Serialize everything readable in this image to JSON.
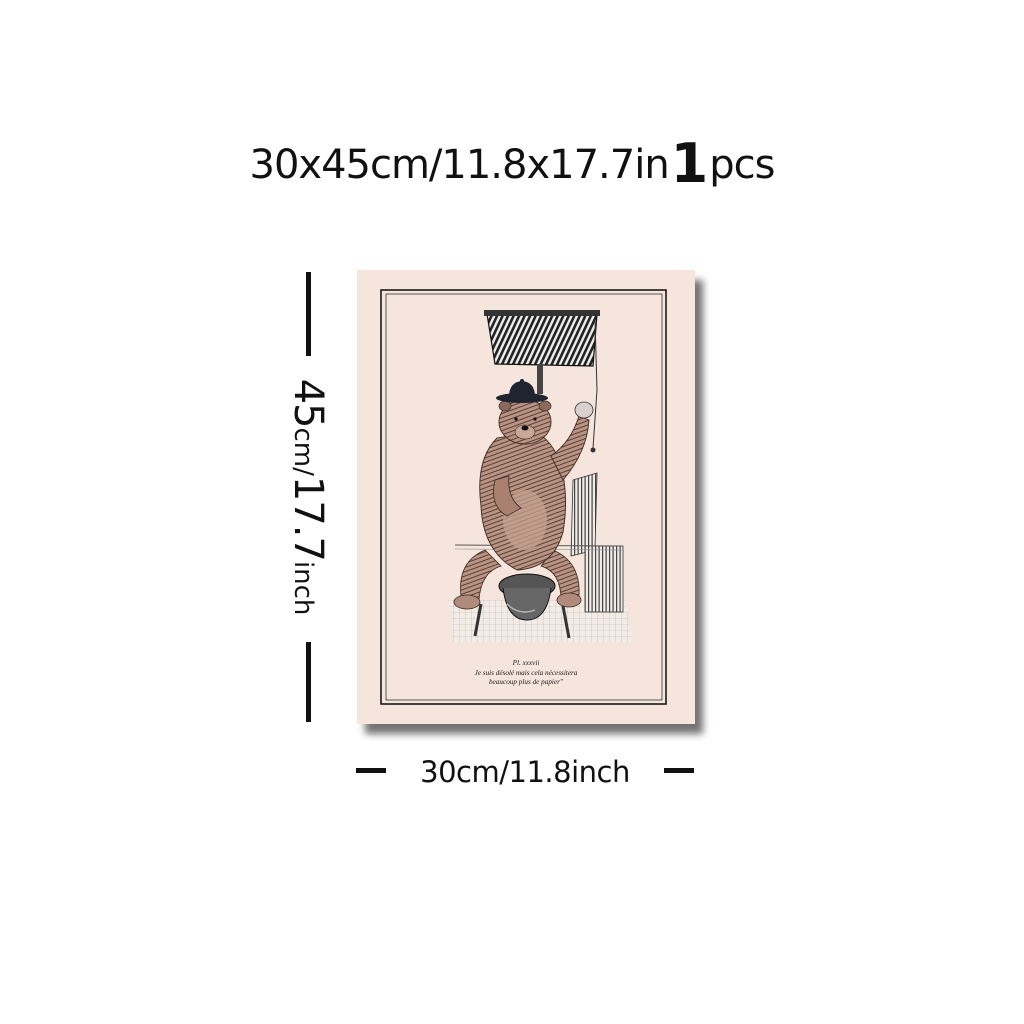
{
  "headline": {
    "dimensions": "30x45cm/11.8x17.7in",
    "quantity": "1",
    "unit": "pcs"
  },
  "height_label": {
    "value": "45",
    "unit_text": "cm/",
    "inch_value": "17.7",
    "inch_unit": "inch"
  },
  "width_label": "30cm/11.8inch",
  "poster": {
    "icons": [
      "bear-illustration"
    ],
    "caption": {
      "line1": "Pl. xxxvii",
      "line2": "Je suis désolé mais cela nécessitera",
      "line3": "beaucoup plus de papier\""
    }
  },
  "colors": {
    "background": "#ffffff",
    "text": "#111111",
    "poster_paper": "#f6e5dc",
    "bear_fur": "#b99484",
    "ink": "#1a1a1a"
  }
}
